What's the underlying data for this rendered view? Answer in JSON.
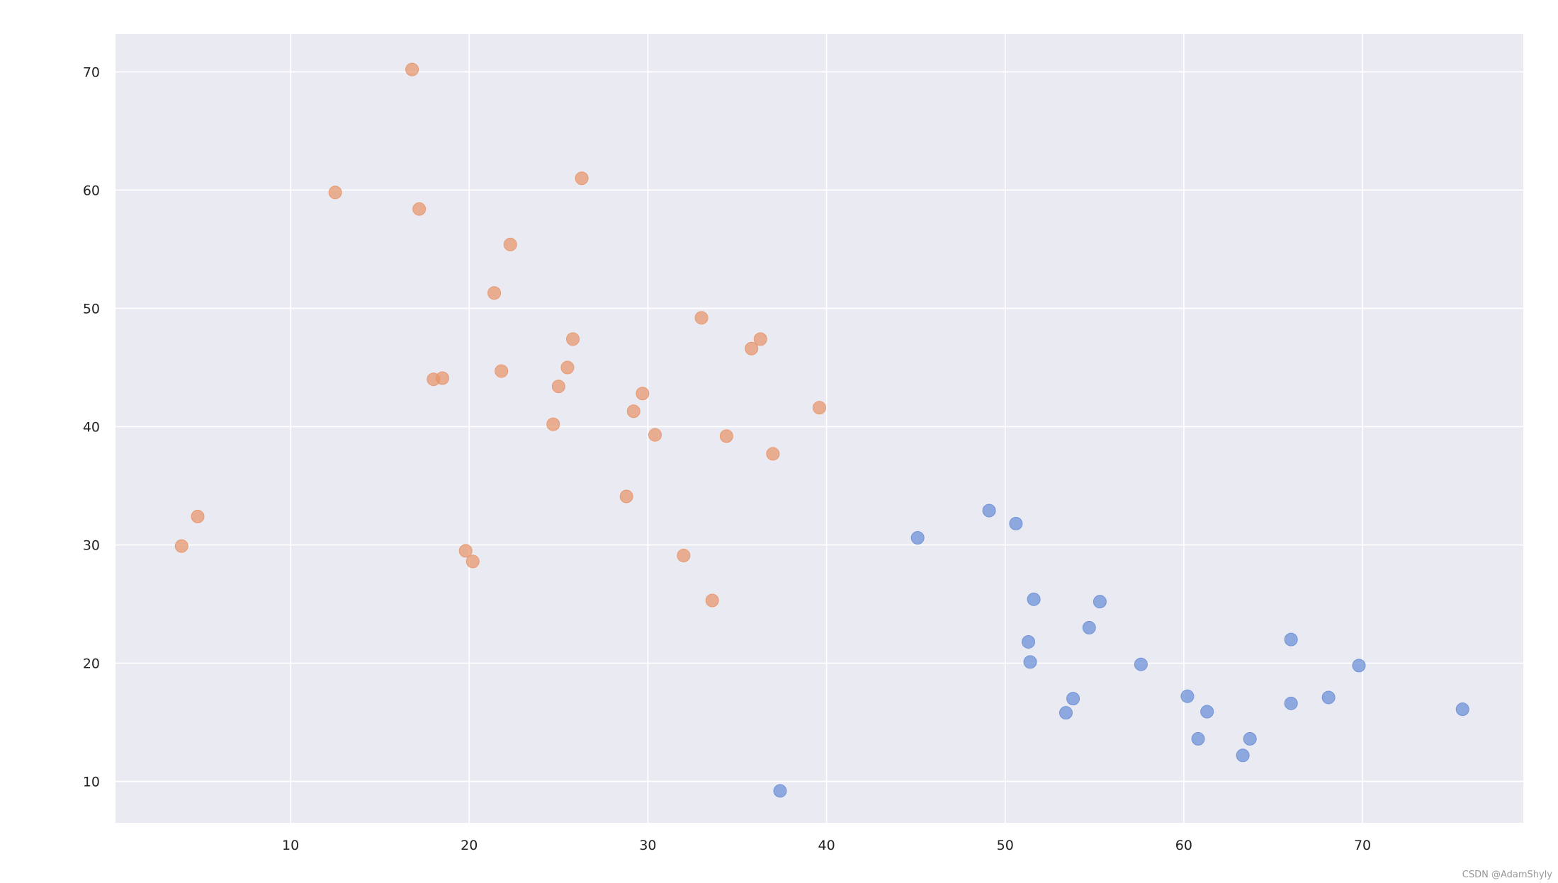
{
  "chart_data": {
    "type": "scatter",
    "title": "",
    "xlabel": "",
    "ylabel": "",
    "xlim": [
      0.2,
      79
    ],
    "ylim": [
      6.5,
      73.2
    ],
    "xticks": [
      10,
      20,
      30,
      40,
      50,
      60,
      70
    ],
    "yticks": [
      10,
      20,
      30,
      40,
      50,
      60,
      70
    ],
    "grid": true,
    "background": "#eaeaf2",
    "series": [
      {
        "color": "#e8956a",
        "points": [
          [
            16.8,
            70.2
          ],
          [
            12.5,
            59.8
          ],
          [
            17.2,
            58.4
          ],
          [
            26.3,
            61.0
          ],
          [
            22.3,
            55.4
          ],
          [
            21.4,
            51.3
          ],
          [
            33.0,
            49.2
          ],
          [
            25.8,
            47.4
          ],
          [
            36.3,
            47.4
          ],
          [
            35.8,
            46.6
          ],
          [
            25.5,
            45.0
          ],
          [
            21.8,
            44.7
          ],
          [
            18.0,
            44.0
          ],
          [
            18.5,
            44.1
          ],
          [
            25.0,
            43.4
          ],
          [
            29.7,
            42.8
          ],
          [
            29.2,
            41.3
          ],
          [
            39.6,
            41.6
          ],
          [
            24.7,
            40.2
          ],
          [
            30.4,
            39.3
          ],
          [
            34.4,
            39.2
          ],
          [
            37.0,
            37.7
          ],
          [
            28.8,
            34.1
          ],
          [
            4.8,
            32.4
          ],
          [
            3.9,
            29.9
          ],
          [
            19.8,
            29.5
          ],
          [
            20.2,
            28.6
          ],
          [
            32.0,
            29.1
          ],
          [
            33.6,
            25.3
          ]
        ]
      },
      {
        "color": "#6a8fd6",
        "points": [
          [
            45.1,
            30.6
          ],
          [
            49.1,
            32.9
          ],
          [
            50.6,
            31.8
          ],
          [
            51.6,
            25.4
          ],
          [
            55.3,
            25.2
          ],
          [
            54.7,
            23.0
          ],
          [
            51.3,
            21.8
          ],
          [
            51.4,
            20.1
          ],
          [
            66.0,
            22.0
          ],
          [
            57.6,
            19.9
          ],
          [
            69.8,
            19.8
          ],
          [
            60.2,
            17.2
          ],
          [
            53.8,
            17.0
          ],
          [
            68.1,
            17.1
          ],
          [
            66.0,
            16.6
          ],
          [
            61.3,
            15.9
          ],
          [
            53.4,
            15.8
          ],
          [
            75.6,
            16.1
          ],
          [
            60.8,
            13.6
          ],
          [
            63.7,
            13.6
          ],
          [
            63.3,
            12.2
          ],
          [
            37.4,
            9.2
          ]
        ]
      }
    ]
  },
  "watermark": "CSDN @AdamShyly"
}
